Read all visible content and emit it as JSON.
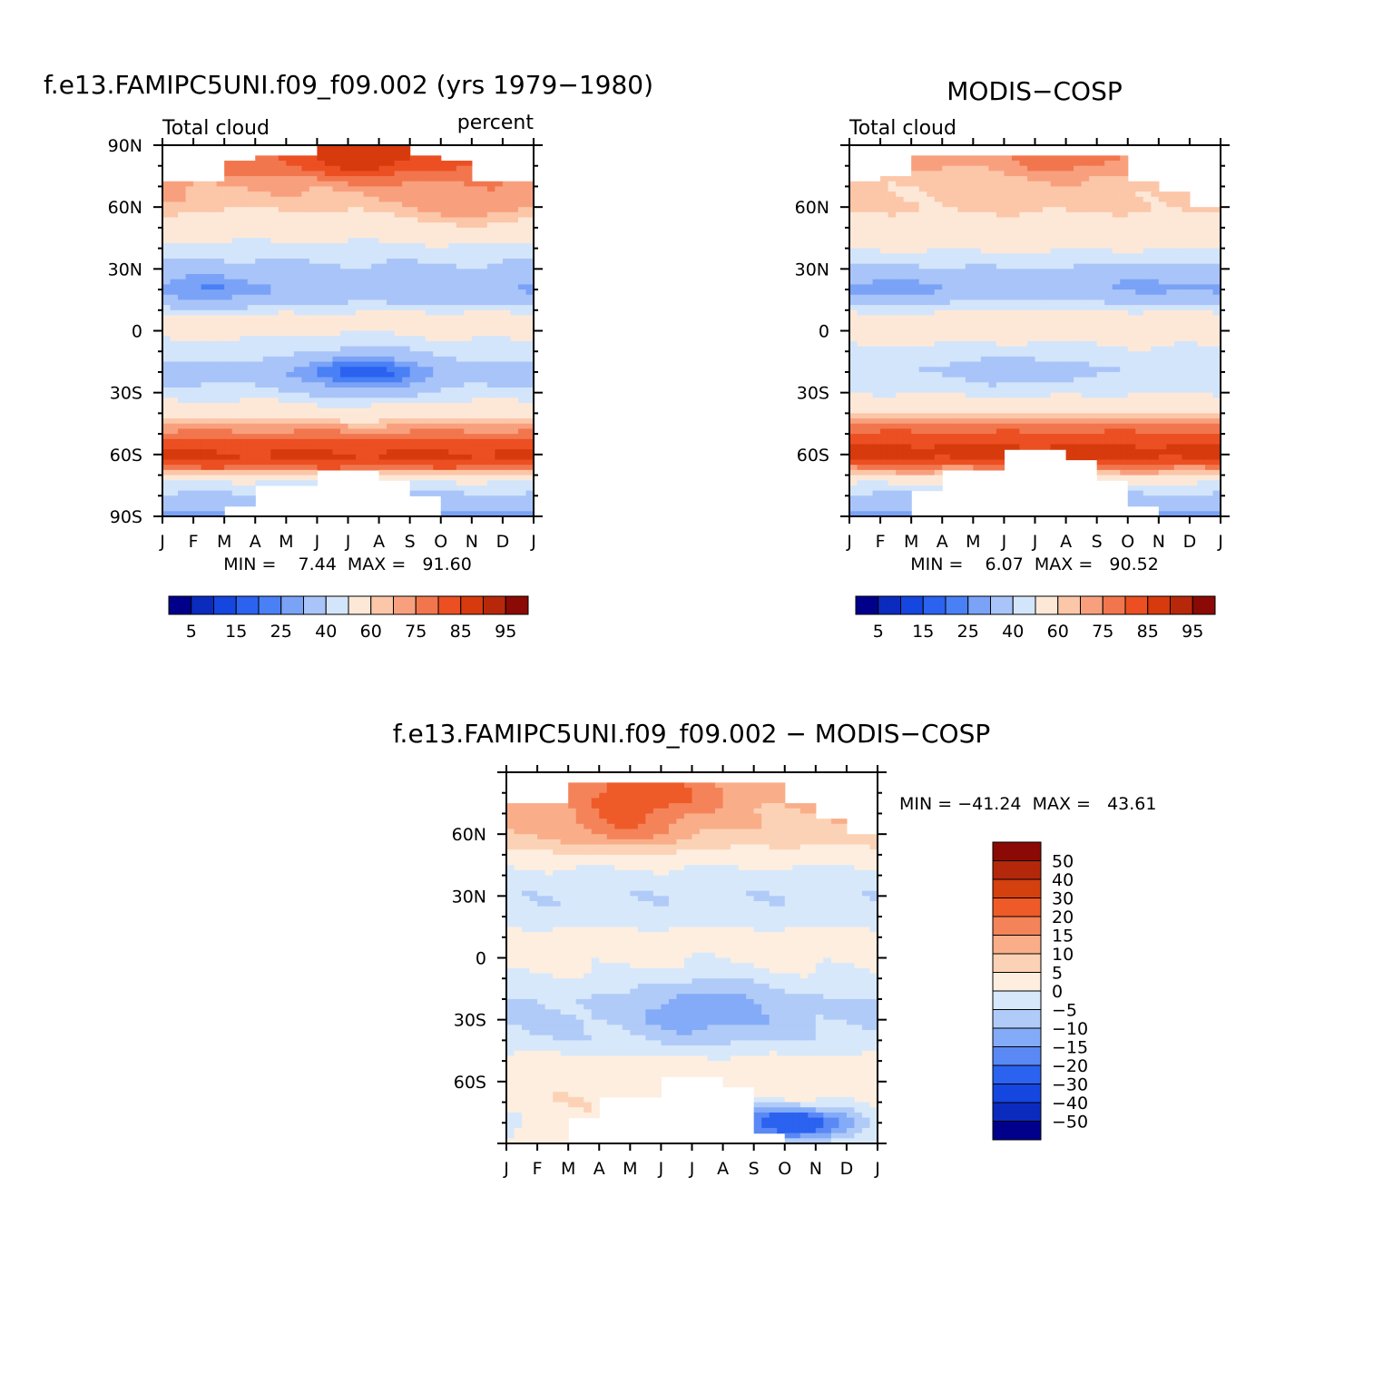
{
  "palettes": {
    "abs": [
      "#00008b",
      "#0b2bbf",
      "#1646e0",
      "#2b62f0",
      "#4a80f5",
      "#7aa2f7",
      "#a9c4f8",
      "#d3e5fb",
      "#fde8d8",
      "#fbc7a8",
      "#f8a07e",
      "#f2764d",
      "#eb4f22",
      "#d63a0d",
      "#b7280a",
      "#8b0a05"
    ],
    "diff": [
      "#00008b",
      "#0b2bbf",
      "#1646e0",
      "#2b62f0",
      "#5a89f5",
      "#84abf7",
      "#b1cbf8",
      "#d7e8fb",
      "#fdeee0",
      "#fcd2b6",
      "#f9ae89",
      "#f5835a",
      "#ee5a28",
      "#d5400f",
      "#b3270a",
      "#8b0a05"
    ]
  },
  "chart_data": [
    {
      "type": "heatmap",
      "id": "model",
      "title": "f.e13.FAMIPC5UNI.f09_f09.002 (yrs 1979−1980)",
      "left_label": "Total cloud",
      "right_label": "percent",
      "xlabel": "month",
      "ylabel": "latitude",
      "x_ticks": [
        "J",
        "F",
        "M",
        "A",
        "M",
        "J",
        "J",
        "A",
        "S",
        "O",
        "N",
        "D",
        "J"
      ],
      "y_ticks": [
        "90N",
        "60N",
        "30N",
        "0",
        "30S",
        "60S",
        "90S"
      ],
      "ylim": [
        -90,
        90
      ],
      "min_text": "MIN =    7.44  MAX =   91.60",
      "levels": [
        5,
        10,
        15,
        20,
        25,
        30,
        40,
        50,
        60,
        65,
        70,
        75,
        80,
        85,
        90,
        95
      ],
      "colorbar_labels": [
        "5",
        "15",
        "25",
        "40",
        "60",
        "75",
        "85",
        "95"
      ],
      "lat_profile": {
        "lats": [
          -90,
          -80,
          -72,
          -66,
          -62,
          -58,
          -54,
          -48,
          -40,
          -30,
          -20,
          -10,
          0,
          6,
          12,
          20,
          30,
          40,
          50,
          60,
          70,
          80,
          90
        ],
        "values": [
          28,
          38,
          52,
          80,
          86,
          85,
          82,
          74,
          60,
          44,
          34,
          46,
          54,
          58,
          42,
          32,
          38,
          46,
          58,
          66,
          70,
          78,
          80
        ]
      },
      "seasonal": [
        {
          "lat": 18,
          "amp": -8,
          "peak_month": 1.5,
          "width": 10
        },
        {
          "lat": -20,
          "amp": -18,
          "peak_month": 6.5,
          "width": 10
        },
        {
          "lat": 85,
          "amp": 10,
          "peak_month": 6.5,
          "width": 10
        },
        {
          "lat": 58,
          "amp": 8,
          "peak_month": 10.0,
          "width": 10
        }
      ],
      "missing": [
        {
          "lat_above": 72,
          "months": [
            0,
            1
          ]
        },
        {
          "lat_above": 82,
          "months": [
            1,
            2
          ]
        },
        {
          "lat_above": 86,
          "months": [
            2,
            3,
            4
          ]
        },
        {
          "lat_above": 86,
          "months": [
            8
          ]
        },
        {
          "lat_above": 82,
          "months": [
            9
          ]
        },
        {
          "lat_above": 72,
          "months": [
            10,
            11
          ]
        },
        {
          "lat_below": -86,
          "months": [
            2
          ]
        },
        {
          "lat_below": -75,
          "months": [
            3,
            4
          ]
        },
        {
          "lat_below": -68,
          "months": [
            5,
            6
          ]
        },
        {
          "lat_below": -72,
          "months": [
            7
          ]
        },
        {
          "lat_below": -80,
          "months": [
            8
          ]
        }
      ]
    },
    {
      "type": "heatmap",
      "id": "obs",
      "title": "MODIS−COSP",
      "left_label": "Total cloud",
      "xlabel": "month",
      "ylabel": "latitude",
      "x_ticks": [
        "J",
        "F",
        "M",
        "A",
        "M",
        "J",
        "J",
        "A",
        "S",
        "O",
        "N",
        "D",
        "J"
      ],
      "y_ticks": [
        "60N",
        "30N",
        "0",
        "30S",
        "60S"
      ],
      "ylim": [
        -90,
        90
      ],
      "min_text": "MIN =    6.07  MAX =   90.52",
      "levels": [
        5,
        10,
        15,
        20,
        25,
        30,
        40,
        50,
        60,
        65,
        70,
        75,
        80,
        85,
        90,
        95
      ],
      "colorbar_labels": [
        "5",
        "15",
        "25",
        "40",
        "60",
        "75",
        "85",
        "95"
      ],
      "lat_profile": {
        "lats": [
          -90,
          -82,
          -74,
          -68,
          -62,
          -58,
          -52,
          -46,
          -38,
          -28,
          -18,
          -8,
          0,
          6,
          12,
          20,
          30,
          40,
          50,
          60,
          70,
          80,
          90
        ],
        "values": [
          28,
          34,
          50,
          72,
          86,
          86,
          84,
          76,
          62,
          46,
          40,
          50,
          56,
          60,
          46,
          34,
          40,
          52,
          62,
          66,
          66,
          70,
          72
        ]
      },
      "seasonal": [
        {
          "lat": 18,
          "amp": -8,
          "peak_month": 1.5,
          "width": 10
        },
        {
          "lat": 22,
          "amp": -6,
          "peak_month": 9.5,
          "width": 10
        },
        {
          "lat": -20,
          "amp": -6,
          "peak_month": 5.5,
          "width": 10
        },
        {
          "lat": 86,
          "amp": 8,
          "peak_month": 7.0,
          "width": 10
        }
      ],
      "missing": [
        {
          "lat_above": 72,
          "months": [
            0
          ]
        },
        {
          "lat_above": 76,
          "months": [
            1
          ]
        },
        {
          "lat_above": 84,
          "months": [
            2
          ]
        },
        {
          "lat_above": 86,
          "months": [
            3,
            4,
            5,
            6,
            7,
            8
          ]
        },
        {
          "lat_above": 72,
          "months": [
            9
          ]
        },
        {
          "lat_above": 68,
          "months": [
            10
          ]
        },
        {
          "lat_above": 60,
          "months": [
            11
          ]
        },
        {
          "lat_below": -78,
          "months": [
            2
          ]
        },
        {
          "lat_below": -68,
          "months": [
            3,
            4
          ]
        },
        {
          "lat_below": -58,
          "months": [
            5,
            6
          ]
        },
        {
          "lat_below": -62,
          "months": [
            7
          ]
        },
        {
          "lat_below": -72,
          "months": [
            8
          ]
        },
        {
          "lat_below": -86,
          "months": [
            9
          ]
        }
      ]
    },
    {
      "type": "heatmap",
      "id": "diff",
      "title": "f.e13.FAMIPC5UNI.f09_f09.002 − MODIS−COSP",
      "xlabel": "month",
      "ylabel": "latitude",
      "x_ticks": [
        "J",
        "F",
        "M",
        "A",
        "M",
        "J",
        "J",
        "A",
        "S",
        "O",
        "N",
        "D",
        "J"
      ],
      "y_ticks": [
        "60N",
        "30N",
        "0",
        "30S",
        "60S"
      ],
      "ylim": [
        -90,
        90
      ],
      "min_text": "MIN = −41.24  MAX =   43.61",
      "levels": [
        -50,
        -40,
        -30,
        -20,
        -15,
        -10,
        -5,
        0,
        5,
        10,
        15,
        20,
        30,
        40,
        50
      ],
      "colorbar_labels": [
        "50",
        "40",
        "30",
        "20",
        "15",
        "10",
        "5",
        "0",
        "−5",
        "−10",
        "−15",
        "−20",
        "−30",
        "−40",
        "−50"
      ],
      "lat_profile": {
        "lats": [
          -90,
          -80,
          -70,
          -60,
          -50,
          -40,
          -30,
          -20,
          -10,
          0,
          10,
          20,
          30,
          40,
          50,
          60,
          70,
          80,
          90
        ],
        "values": [
          2,
          3,
          4,
          3,
          2,
          -4,
          -6,
          -5,
          -1,
          2,
          3,
          -4,
          -4,
          -2,
          3,
          8,
          10,
          12,
          12
        ]
      },
      "seasonal": [
        {
          "lat": -24,
          "amp": -8,
          "peak_month": 6.5,
          "width": 12
        },
        {
          "lat": 80,
          "amp": 12,
          "peak_month": 4.5,
          "width": 10
        },
        {
          "lat": 62,
          "amp": 8,
          "peak_month": 3.5,
          "width": 8
        },
        {
          "lat": -80,
          "amp": -30,
          "peak_month": 9.3,
          "width": 6
        }
      ],
      "missing": [
        {
          "lat_above": 76,
          "months": [
            0,
            1
          ]
        },
        {
          "lat_above": 86,
          "months": [
            2,
            3,
            4,
            5,
            6,
            7
          ]
        },
        {
          "lat_above": 86,
          "months": [
            8
          ]
        },
        {
          "lat_above": 76,
          "months": [
            9
          ]
        },
        {
          "lat_above": 68,
          "months": [
            10
          ]
        },
        {
          "lat_above": 60,
          "months": [
            11
          ]
        },
        {
          "lat_below": -78,
          "months": [
            2
          ]
        },
        {
          "lat_below": -68,
          "months": [
            3,
            4
          ]
        },
        {
          "lat_below": -58,
          "months": [
            5,
            6
          ]
        },
        {
          "lat_below": -62,
          "months": [
            7
          ]
        },
        {
          "lat_below": -86,
          "months": [
            8
          ]
        }
      ]
    }
  ]
}
